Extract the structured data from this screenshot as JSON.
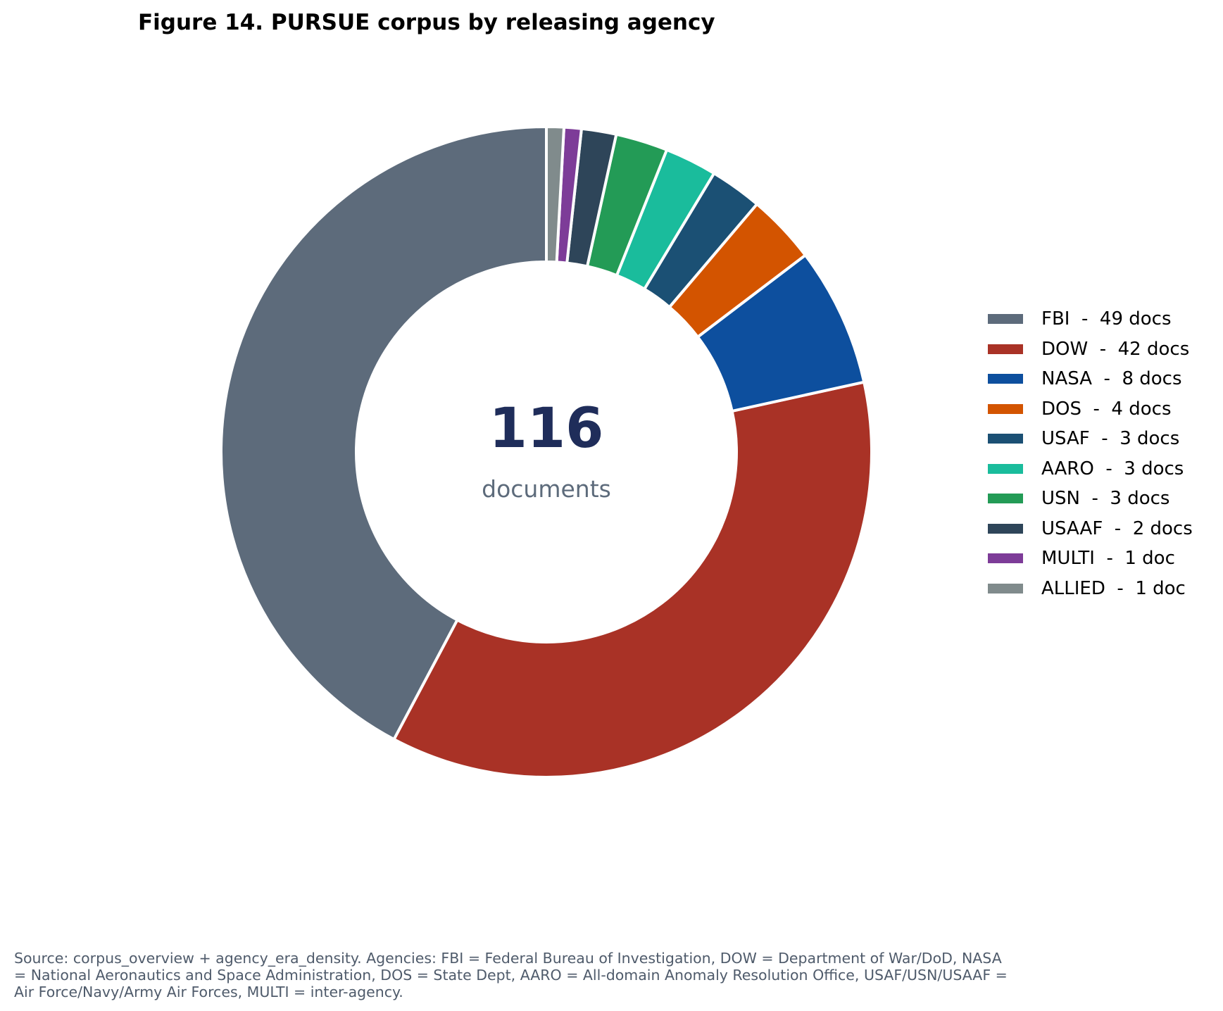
{
  "chart_data": {
    "type": "pie",
    "title": "Figure 14. PURSUE corpus by releasing agency",
    "center_value": "116",
    "center_label": "documents",
    "slices": [
      {
        "label": "FBI",
        "value": 49,
        "legend": "FBI  -  49 docs",
        "color": "#5d6b7b"
      },
      {
        "label": "DOW",
        "value": 42,
        "legend": "DOW  -  42 docs",
        "color": "#a93226"
      },
      {
        "label": "NASA",
        "value": 8,
        "legend": "NASA  -  8 docs",
        "color": "#0d4f9e"
      },
      {
        "label": "DOS",
        "value": 4,
        "legend": "DOS  -  4 docs",
        "color": "#d35400"
      },
      {
        "label": "USAF",
        "value": 3,
        "legend": "USAF  -  3 docs",
        "color": "#1b5074"
      },
      {
        "label": "AARO",
        "value": 3,
        "legend": "AARO  -  3 docs",
        "color": "#1abc9c"
      },
      {
        "label": "USN",
        "value": 3,
        "legend": "USN  -  3 docs",
        "color": "#239b56"
      },
      {
        "label": "USAAF",
        "value": 2,
        "legend": "USAAF  -  2 docs",
        "color": "#2e4559"
      },
      {
        "label": "MULTI",
        "value": 1,
        "legend": "MULTI  -  1 doc",
        "color": "#7d3c98"
      },
      {
        "label": "ALLIED",
        "value": 1,
        "legend": "ALLIED  -  1 doc",
        "color": "#808b8c"
      }
    ],
    "direction": "clockwise-from-top, reversed order",
    "legend_position": "right"
  },
  "footnote": "Source: corpus_overview + agency_era_density. Agencies: FBI = Federal Bureau of Investigation, DOW = Department of War/DoD, NASA = National Aeronautics and Space Administration, DOS = State Dept, AARO = All-domain Anomaly Resolution Office, USAF/USN/USAAF = Air Force/Navy/Army Air Forces, MULTI = inter-agency.",
  "colors": {
    "center_value": "#1f2d5a",
    "center_label": "#5d6b7b",
    "footnote": "#4f5b6b"
  }
}
